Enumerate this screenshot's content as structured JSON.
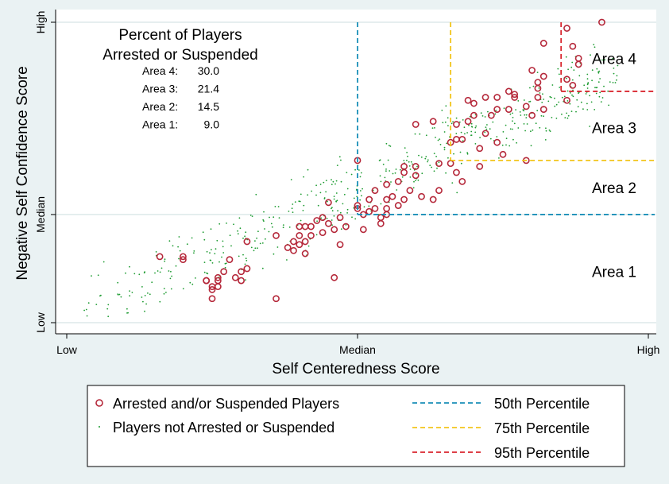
{
  "chart_data": {
    "type": "scatter",
    "title": "",
    "xlabel": "Self Centeredness Score",
    "ylabel": "Negative Self Confidence Score",
    "x_ticks": [
      {
        "value": 0,
        "label": "Low"
      },
      {
        "value": 0.5,
        "label": "Median"
      },
      {
        "value": 1,
        "label": "High"
      }
    ],
    "y_ticks": [
      {
        "value": 0,
        "label": "Low"
      },
      {
        "value": 0.36,
        "label": "Median"
      },
      {
        "value": 1,
        "label": "High"
      }
    ],
    "xlim": [
      -0.02,
      1.02
    ],
    "ylim": [
      -0.02,
      1.02
    ],
    "inset": {
      "title_lines": [
        "Percent of Players",
        "Arrested or Suspended"
      ],
      "rows": [
        {
          "label": "Area 4:",
          "value": "30.0"
        },
        {
          "label": "Area 3:",
          "value": "21.4"
        },
        {
          "label": "Area 2:",
          "value": "14.5"
        },
        {
          "label": "Area 1:",
          "value": "9.0"
        }
      ]
    },
    "areas": [
      {
        "name": "Area 4",
        "y": 0.88
      },
      {
        "name": "Area 3",
        "y": 0.65
      },
      {
        "name": "Area 2",
        "y": 0.45
      },
      {
        "name": "Area 1",
        "y": 0.17
      }
    ],
    "percentile_lines": [
      {
        "name": "50th Percentile",
        "color": "#1a8fb8",
        "x": 0.5,
        "y": 0.36
      },
      {
        "name": "75th Percentile",
        "color": "#f2c51c",
        "x": 0.66,
        "y": 0.54
      },
      {
        "name": "95th Percentile",
        "color": "#d9262e",
        "x": 0.85,
        "y": 0.77
      }
    ],
    "series": [
      {
        "name": "Arrested and/or Suspended Players",
        "marker": "hollow-circle",
        "color": "#b5283a",
        "points": [
          [
            0.92,
            1.0
          ],
          [
            0.82,
            0.93
          ],
          [
            0.86,
            0.98
          ],
          [
            0.87,
            0.92
          ],
          [
            0.88,
            0.86
          ],
          [
            0.88,
            0.88
          ],
          [
            0.86,
            0.81
          ],
          [
            0.8,
            0.84
          ],
          [
            0.82,
            0.82
          ],
          [
            0.81,
            0.8
          ],
          [
            0.87,
            0.79
          ],
          [
            0.81,
            0.78
          ],
          [
            0.86,
            0.74
          ],
          [
            0.77,
            0.76
          ],
          [
            0.76,
            0.77
          ],
          [
            0.77,
            0.75
          ],
          [
            0.74,
            0.75
          ],
          [
            0.72,
            0.75
          ],
          [
            0.69,
            0.74
          ],
          [
            0.7,
            0.73
          ],
          [
            0.74,
            0.71
          ],
          [
            0.73,
            0.69
          ],
          [
            0.79,
            0.72
          ],
          [
            0.76,
            0.71
          ],
          [
            0.81,
            0.75
          ],
          [
            0.8,
            0.69
          ],
          [
            0.82,
            0.71
          ],
          [
            0.7,
            0.69
          ],
          [
            0.69,
            0.67
          ],
          [
            0.67,
            0.66
          ],
          [
            0.63,
            0.67
          ],
          [
            0.6,
            0.66
          ],
          [
            0.67,
            0.61
          ],
          [
            0.68,
            0.61
          ],
          [
            0.66,
            0.6
          ],
          [
            0.72,
            0.63
          ],
          [
            0.71,
            0.58
          ],
          [
            0.71,
            0.52
          ],
          [
            0.74,
            0.6
          ],
          [
            0.75,
            0.56
          ],
          [
            0.79,
            0.54
          ],
          [
            0.67,
            0.5
          ],
          [
            0.68,
            0.47
          ],
          [
            0.66,
            0.53
          ],
          [
            0.64,
            0.53
          ],
          [
            0.6,
            0.52
          ],
          [
            0.6,
            0.49
          ],
          [
            0.58,
            0.52
          ],
          [
            0.58,
            0.5
          ],
          [
            0.57,
            0.47
          ],
          [
            0.55,
            0.46
          ],
          [
            0.56,
            0.42
          ],
          [
            0.55,
            0.41
          ],
          [
            0.53,
            0.44
          ],
          [
            0.52,
            0.41
          ],
          [
            0.5,
            0.54
          ],
          [
            0.5,
            0.39
          ],
          [
            0.5,
            0.38
          ],
          [
            0.51,
            0.36
          ],
          [
            0.52,
            0.37
          ],
          [
            0.53,
            0.38
          ],
          [
            0.54,
            0.35
          ],
          [
            0.54,
            0.33
          ],
          [
            0.51,
            0.31
          ],
          [
            0.55,
            0.36
          ],
          [
            0.58,
            0.41
          ],
          [
            0.61,
            0.42
          ],
          [
            0.59,
            0.44
          ],
          [
            0.64,
            0.44
          ],
          [
            0.63,
            0.41
          ],
          [
            0.57,
            0.39
          ],
          [
            0.55,
            0.38
          ],
          [
            0.45,
            0.4
          ],
          [
            0.44,
            0.35
          ],
          [
            0.45,
            0.33
          ],
          [
            0.43,
            0.34
          ],
          [
            0.42,
            0.32
          ],
          [
            0.4,
            0.32
          ],
          [
            0.41,
            0.32
          ],
          [
            0.4,
            0.29
          ],
          [
            0.41,
            0.27
          ],
          [
            0.42,
            0.29
          ],
          [
            0.39,
            0.27
          ],
          [
            0.36,
            0.29
          ],
          [
            0.4,
            0.26
          ],
          [
            0.39,
            0.24
          ],
          [
            0.38,
            0.25
          ],
          [
            0.41,
            0.23
          ],
          [
            0.47,
            0.26
          ],
          [
            0.46,
            0.31
          ],
          [
            0.47,
            0.35
          ],
          [
            0.48,
            0.32
          ],
          [
            0.44,
            0.3
          ],
          [
            0.31,
            0.27
          ],
          [
            0.31,
            0.18
          ],
          [
            0.3,
            0.17
          ],
          [
            0.28,
            0.21
          ],
          [
            0.29,
            0.15
          ],
          [
            0.26,
            0.14
          ],
          [
            0.24,
            0.14
          ],
          [
            0.25,
            0.12
          ],
          [
            0.26,
            0.15
          ],
          [
            0.26,
            0.12
          ],
          [
            0.25,
            0.11
          ],
          [
            0.24,
            0.14
          ],
          [
            0.27,
            0.17
          ],
          [
            0.3,
            0.14
          ],
          [
            0.2,
            0.21
          ],
          [
            0.2,
            0.22
          ],
          [
            0.16,
            0.22
          ],
          [
            0.25,
            0.08
          ],
          [
            0.36,
            0.08
          ],
          [
            0.46,
            0.15
          ]
        ]
      },
      {
        "name": "Players not Arrested or Suspended",
        "marker": "dot",
        "color": "#1e9c32"
      }
    ],
    "legend": {
      "placement": "bottom",
      "entries": [
        "Arrested and/or Suspended Players",
        "Players not Arrested or Suspended",
        "50th Percentile",
        "75th Percentile",
        "95th Percentile"
      ]
    }
  }
}
